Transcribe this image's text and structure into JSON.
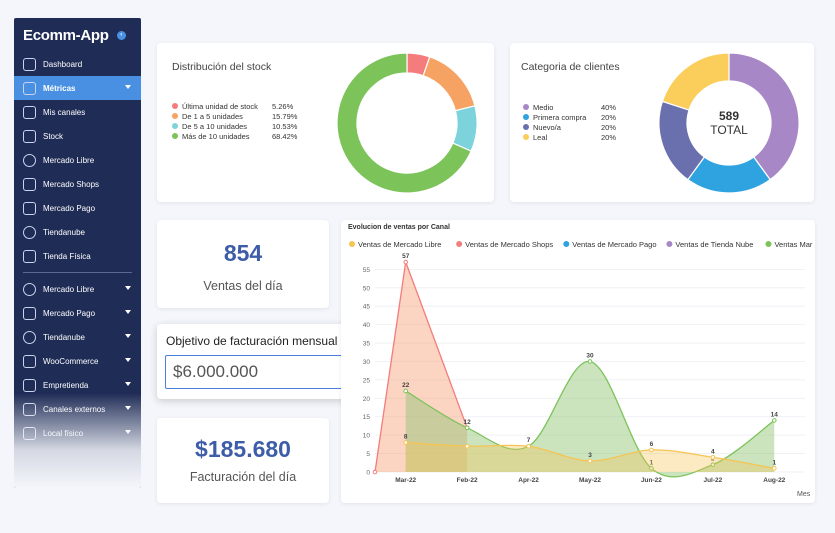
{
  "sidebar": {
    "logo": "Ecomm-App",
    "collapse_icon": "chevron-left-icon",
    "items": [
      {
        "label": "Dashboard",
        "icon": "grid-icon",
        "active": false,
        "chevron": false
      },
      {
        "label": "Métricas",
        "icon": "chart-icon",
        "active": true,
        "chevron": true
      },
      {
        "label": "Mis canales",
        "icon": "network-icon",
        "active": false,
        "chevron": false
      },
      {
        "label": "Stock",
        "icon": "box-icon",
        "active": false,
        "chevron": false
      },
      {
        "label": "Mercado Libre",
        "icon": "handshake-icon",
        "active": false,
        "chevron": false
      },
      {
        "label": "Mercado Shops",
        "icon": "shop-icon",
        "active": false,
        "chevron": false
      },
      {
        "label": "Mercado Pago",
        "icon": "wallet-icon",
        "active": false,
        "chevron": false
      },
      {
        "label": "Tiendanube",
        "icon": "cloud-icon",
        "active": false,
        "chevron": false
      },
      {
        "label": "Tienda Física",
        "icon": "store-icon",
        "active": false,
        "chevron": false
      }
    ],
    "items2": [
      {
        "label": "Mercado Libre",
        "icon": "handshake-icon",
        "chevron": true
      },
      {
        "label": "Mercado Pago",
        "icon": "wallet-icon",
        "chevron": true
      },
      {
        "label": "Tiendanube",
        "icon": "cloud-icon",
        "chevron": true
      },
      {
        "label": "WooCommerce",
        "icon": "woo-icon",
        "chevron": true
      },
      {
        "label": "Empretienda",
        "icon": "cart-icon",
        "chevron": true
      },
      {
        "label": "Canales externos",
        "icon": "network-icon",
        "chevron": true
      },
      {
        "label": "Local físico",
        "icon": "store-icon",
        "chevron": true
      }
    ]
  },
  "stock": {
    "title": "Distribución del stock",
    "legend": [
      {
        "label": "Última unidad de stock",
        "value": "5.26%",
        "color": "#f47c7c",
        "pct": 5.26
      },
      {
        "label": "De 1 a 5 unidades",
        "value": "15.79%",
        "color": "#f5a262",
        "pct": 15.79
      },
      {
        "label": "De 5 a 10 unidades",
        "value": "10.53%",
        "color": "#7dd3dc",
        "pct": 10.53
      },
      {
        "label": "Más de 10 unidades",
        "value": "68.42%",
        "color": "#7cc35a",
        "pct": 68.42
      }
    ]
  },
  "clientes": {
    "title": "Categoria de clientes",
    "total_number": "589",
    "total_label": "TOTAL",
    "legend": [
      {
        "label": "Medio",
        "value": "40%",
        "color": "#a787c6",
        "pct": 40
      },
      {
        "label": "Primera compra",
        "value": "20%",
        "color": "#2fa3df",
        "pct": 20
      },
      {
        "label": "Nuevo/a",
        "value": "20%",
        "color": "#6a6fae",
        "pct": 20
      },
      {
        "label": "Leal",
        "value": "20%",
        "color": "#fbcd5a",
        "pct": 20
      }
    ]
  },
  "ventas_dia": {
    "number": "854",
    "label": "Ventas del día"
  },
  "objetivo": {
    "title": "Objetivo de facturación mensual",
    "value": "$6.000.000"
  },
  "facturacion": {
    "number": "$185.680",
    "label": "Facturación del día"
  },
  "chart_data": {
    "type": "area",
    "title": "Evolucion de ventas por Canal",
    "xlabel": "Mes",
    "categories": [
      "Mar-22",
      "Feb-22",
      "Apr-22",
      "May-22",
      "Jun-22",
      "Jul-22",
      "Aug-22"
    ],
    "yticks": [
      0,
      5,
      10,
      15,
      20,
      25,
      30,
      35,
      40,
      45,
      50,
      55
    ],
    "ylim": [
      0,
      57
    ],
    "legend": [
      {
        "name": "Ventas de Mercado Libre",
        "color": "#f6c453"
      },
      {
        "name": "Ventas de Mercado Shops",
        "color": "#f47c7c"
      },
      {
        "name": "Ventas de Mercado Pago",
        "color": "#2fa3df"
      },
      {
        "name": "Ventas de Tienda Nube",
        "color": "#a787c6"
      },
      {
        "name": "Ventas Mar",
        "color": "#7cc35a"
      }
    ],
    "series": [
      {
        "name": "Ventas de Mercado Shops",
        "color": "#f47c7c",
        "fill": "rgba(247,160,120,0.45)",
        "points": [
          [
            0,
            0
          ],
          [
            0.5,
            57
          ],
          [
            1.5,
            12
          ]
        ],
        "labels": [
          [
            0.5,
            "57"
          ],
          [
            1.5,
            "12"
          ]
        ]
      },
      {
        "name": "Ventas Mar",
        "color": "#7cc35a",
        "fill": "rgba(140,195,110,0.45)",
        "points": [
          [
            0.5,
            22
          ],
          [
            1.5,
            12
          ],
          [
            2.5,
            7
          ],
          [
            3.5,
            30
          ],
          [
            4.5,
            1
          ],
          [
            5.5,
            2
          ],
          [
            6.5,
            14
          ]
        ],
        "labels": [
          [
            0.5,
            "22"
          ],
          [
            2.5,
            "7"
          ],
          [
            3.5,
            "30"
          ],
          [
            4.5,
            "1"
          ],
          [
            5.5,
            "2"
          ],
          [
            6.5,
            "14"
          ]
        ]
      },
      {
        "name": "Ventas de Mercado Libre",
        "color": "#f6c453",
        "fill": "rgba(246,196,83,0.35)",
        "points": [
          [
            0.5,
            8
          ],
          [
            1.5,
            7
          ],
          [
            2.5,
            7
          ],
          [
            3.5,
            3
          ],
          [
            4.5,
            6
          ],
          [
            5.5,
            4
          ],
          [
            6.5,
            1
          ]
        ],
        "labels": [
          [
            0.5,
            "8"
          ],
          [
            3.5,
            "3"
          ],
          [
            4.5,
            "6"
          ],
          [
            5.5,
            "4"
          ],
          [
            6.5,
            "1"
          ]
        ]
      }
    ]
  }
}
